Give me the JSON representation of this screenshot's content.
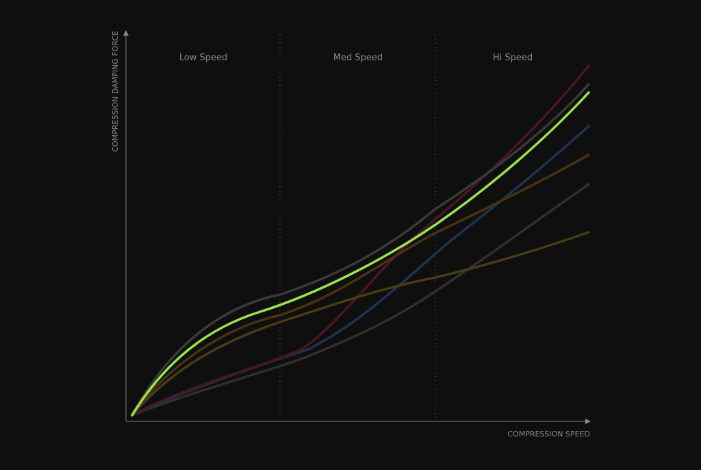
{
  "zones": [
    "Low Speed",
    "Med Speed",
    "Hi Speed"
  ],
  "y_axis_label": "COMPRESSION DAMPING FORCE",
  "x_axis_label": "COMPRESSION SPEED"
}
